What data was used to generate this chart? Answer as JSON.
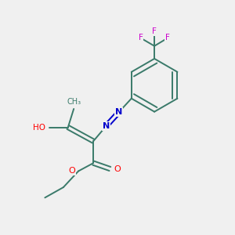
{
  "background_color": "#f0f0f0",
  "atom_colors": {
    "C": "#3a7a6a",
    "O": "#ff0000",
    "N": "#0000cc",
    "F": "#cc00cc",
    "H": "#3a7a6a"
  },
  "bond_color": "#3a7a6a",
  "figsize": [
    3.0,
    3.0
  ],
  "dpi": 100
}
